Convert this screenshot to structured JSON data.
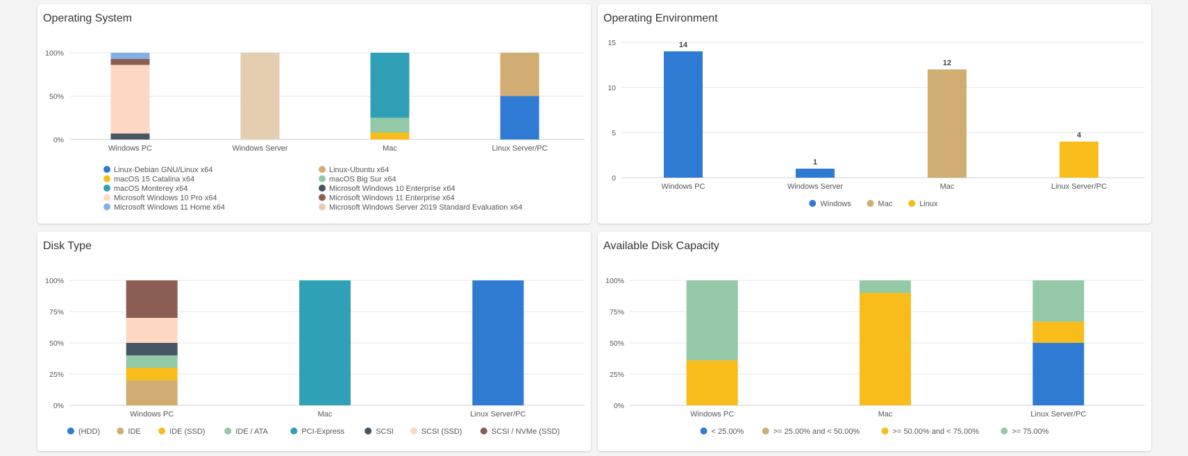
{
  "colors": {
    "blue": "#2f7bd4",
    "tan": "#d1ac73",
    "yellow": "#f8bd1b",
    "green": "#93c9a7",
    "teal": "#30a0b6",
    "slate": "#475565",
    "peach": "#fed8c2",
    "brown": "#8c5d55",
    "lightblue": "#84b1e5",
    "beige": "#e4ceaf"
  },
  "chart_data": [
    {
      "id": "os",
      "type": "bar",
      "stacked": "percent",
      "title": "Operating System",
      "categories": [
        "Windows PC",
        "Windows Server",
        "Mac",
        "Linux Server/PC"
      ],
      "ylim": [
        0,
        100
      ],
      "yticks": [
        0,
        50,
        100
      ],
      "legend_layout": "two-column",
      "series": [
        {
          "name": "Linux-Debian GNU/Linux x64",
          "color": "blue",
          "values": [
            0,
            0,
            0,
            50
          ]
        },
        {
          "name": "Linux-Ubuntu x64",
          "color": "tan",
          "values": [
            0,
            0,
            0,
            50
          ]
        },
        {
          "name": "macOS 15 Catalina x64",
          "color": "yellow",
          "values": [
            0,
            0,
            8,
            0
          ]
        },
        {
          "name": "macOS Big Sur x64",
          "color": "green",
          "values": [
            0,
            0,
            17,
            0
          ]
        },
        {
          "name": "macOS Monterey x64",
          "color": "teal",
          "values": [
            0,
            0,
            75,
            0
          ]
        },
        {
          "name": "Microsoft Windows 10 Enterprise x64",
          "color": "slate",
          "values": [
            7,
            0,
            0,
            0
          ]
        },
        {
          "name": "Microsoft Windows 10 Pro x64",
          "color": "peach",
          "values": [
            79,
            0,
            0,
            0
          ]
        },
        {
          "name": "Microsoft Windows 11 Enterprise x64",
          "color": "brown",
          "values": [
            7,
            0,
            0,
            0
          ]
        },
        {
          "name": "Microsoft Windows 11 Home x64",
          "color": "lightblue",
          "values": [
            7,
            0,
            0,
            0
          ]
        },
        {
          "name": "Microsoft Windows Server 2019 Standard Evaluation x64",
          "color": "beige",
          "values": [
            0,
            100,
            0,
            0
          ]
        }
      ]
    },
    {
      "id": "env",
      "type": "bar",
      "stacked": "none",
      "title": "Operating Environment",
      "categories": [
        "Windows PC",
        "Windows Server",
        "Mac",
        "Linux Server/PC"
      ],
      "ylim": [
        0,
        15
      ],
      "yticks": [
        0,
        5,
        10,
        15
      ],
      "legend_layout": "row",
      "show_data_labels": true,
      "series": [
        {
          "name": "Windows",
          "color": "blue",
          "values": [
            14,
            1,
            0,
            0
          ]
        },
        {
          "name": "Mac",
          "color": "tan",
          "values": [
            0,
            0,
            12,
            0
          ]
        },
        {
          "name": "Linux",
          "color": "yellow",
          "values": [
            0,
            0,
            0,
            4
          ]
        }
      ]
    },
    {
      "id": "disk",
      "type": "bar",
      "stacked": "percent",
      "title": "Disk Type",
      "categories": [
        "Windows PC",
        "Mac",
        "Linux Server/PC"
      ],
      "ylim": [
        0,
        100
      ],
      "yticks": [
        0,
        25,
        50,
        75,
        100
      ],
      "legend_layout": "row",
      "series": [
        {
          "name": "(HDD)",
          "color": "blue",
          "values": [
            0,
            0,
            100
          ]
        },
        {
          "name": "IDE",
          "color": "tan",
          "values": [
            20,
            0,
            0
          ]
        },
        {
          "name": "IDE (SSD)",
          "color": "yellow",
          "values": [
            10,
            0,
            0
          ]
        },
        {
          "name": "IDE / ATA",
          "color": "green",
          "values": [
            10,
            0,
            0
          ]
        },
        {
          "name": "PCI-Express",
          "color": "teal",
          "values": [
            0,
            100,
            0
          ]
        },
        {
          "name": "SCSI",
          "color": "slate",
          "values": [
            10,
            0,
            0
          ]
        },
        {
          "name": "SCSI (SSD)",
          "color": "peach",
          "values": [
            20,
            0,
            0
          ]
        },
        {
          "name": "SCSI / NVMe (SSD)",
          "color": "brown",
          "values": [
            30,
            0,
            0
          ]
        }
      ]
    },
    {
      "id": "cap",
      "type": "bar",
      "stacked": "percent",
      "title": "Available Disk Capacity",
      "categories": [
        "Windows PC",
        "Mac",
        "Linux Server/PC"
      ],
      "ylim": [
        0,
        100
      ],
      "yticks": [
        0,
        25,
        50,
        75,
        100
      ],
      "legend_layout": "row",
      "series": [
        {
          "name": "< 25.00%",
          "color": "blue",
          "values": [
            0,
            0,
            50
          ]
        },
        {
          "name": ">= 25.00% and < 50.00%",
          "color": "tan",
          "values": [
            0,
            0,
            0
          ]
        },
        {
          "name": ">= 50.00% and < 75.00%",
          "color": "yellow",
          "values": [
            36,
            90,
            17
          ]
        },
        {
          "name": ">= 75.00%",
          "color": "green",
          "values": [
            64,
            10,
            33
          ]
        }
      ]
    }
  ]
}
